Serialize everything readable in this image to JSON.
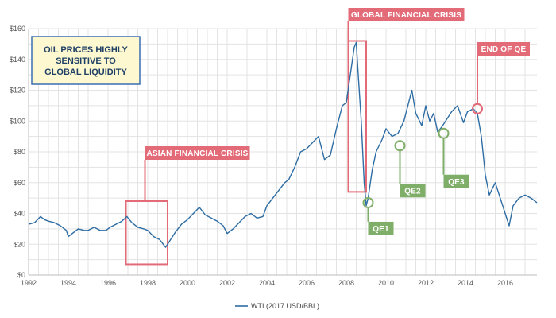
{
  "chart_data": {
    "type": "line",
    "title": "",
    "xlabel": "",
    "ylabel": "",
    "xlim": [
      1992,
      2017.6
    ],
    "ylim": [
      0,
      160
    ],
    "x_ticks": [
      1992,
      1994,
      1996,
      1998,
      2000,
      2002,
      2004,
      2006,
      2008,
      2010,
      2012,
      2014,
      2016
    ],
    "x_tick_labels": [
      "1992",
      "1994",
      "1996",
      "1998",
      "2000",
      "2002",
      "2004",
      "2006",
      "2008",
      "2010",
      "2012",
      "2014",
      "2016"
    ],
    "y_ticks": [
      0,
      20,
      40,
      60,
      80,
      100,
      120,
      140,
      160
    ],
    "y_tick_labels": [
      "$0",
      "$20",
      "$40",
      "$60",
      "$80",
      "$100",
      "$120",
      "$140",
      "$160"
    ],
    "grid": true,
    "legend_position": "bottom-center",
    "series": [
      {
        "name": "WTI (2017 USD/BBL)",
        "color": "#2e6da4",
        "x": [
          1992.0,
          1992.3,
          1992.6,
          1992.8,
          1993.0,
          1993.3,
          1993.6,
          1993.9,
          1994.0,
          1994.2,
          1994.5,
          1994.8,
          1995.0,
          1995.3,
          1995.6,
          1995.9,
          1996.1,
          1996.4,
          1996.7,
          1996.95,
          1997.2,
          1997.5,
          1997.8,
          1998.0,
          1998.3,
          1998.6,
          1998.9,
          1999.1,
          1999.4,
          1999.7,
          2000.0,
          2000.3,
          2000.6,
          2000.9,
          2001.2,
          2001.5,
          2001.8,
          2002.0,
          2002.3,
          2002.6,
          2002.9,
          2003.2,
          2003.5,
          2003.8,
          2004.0,
          2004.3,
          2004.6,
          2004.9,
          2005.1,
          2005.4,
          2005.7,
          2006.0,
          2006.3,
          2006.6,
          2006.9,
          2007.2,
          2007.5,
          2007.8,
          2008.0,
          2008.2,
          2008.4,
          2008.5,
          2008.6,
          2008.75,
          2008.9,
          2009.0,
          2009.1,
          2009.3,
          2009.5,
          2009.8,
          2010.0,
          2010.3,
          2010.6,
          2010.9,
          2011.1,
          2011.3,
          2011.5,
          2011.8,
          2012.0,
          2012.2,
          2012.4,
          2012.6,
          2012.8,
          2013.0,
          2013.3,
          2013.6,
          2013.9,
          2014.1,
          2014.4,
          2014.6,
          2014.8,
          2015.0,
          2015.2,
          2015.5,
          2015.8,
          2016.0,
          2016.2,
          2016.4,
          2016.7,
          2017.0,
          2017.3,
          2017.6
        ],
        "y": [
          33,
          34,
          38,
          36,
          35,
          34,
          32,
          29,
          25,
          27,
          30,
          29,
          29,
          31,
          29,
          29,
          31,
          33,
          35,
          38,
          34,
          31,
          30,
          29,
          25,
          23,
          18,
          22,
          28,
          33,
          36,
          40,
          44,
          39,
          37,
          35,
          32,
          27,
          30,
          34,
          38,
          40,
          37,
          38,
          45,
          50,
          55,
          60,
          62,
          70,
          80,
          82,
          86,
          90,
          75,
          78,
          95,
          110,
          112,
          130,
          148,
          151,
          130,
          100,
          60,
          45,
          50,
          68,
          80,
          88,
          95,
          90,
          92,
          100,
          110,
          120,
          105,
          97,
          110,
          100,
          105,
          93,
          96,
          100,
          106,
          110,
          99,
          106,
          108,
          105,
          90,
          65,
          52,
          60,
          48,
          40,
          32,
          45,
          50,
          52,
          50,
          47
        ]
      }
    ],
    "annotations": [
      {
        "label": "GLOBAL FINANCIAL CRISIS",
        "type": "box",
        "x": [
          2008.1,
          2009.0
        ],
        "y": [
          54,
          152
        ]
      },
      {
        "label": "ASIAN FINANCIAL CRISIS",
        "type": "box",
        "x": [
          1996.9,
          1999.0
        ],
        "y": [
          7,
          48
        ]
      },
      {
        "label": "END OF QE",
        "type": "circle",
        "x": 2014.6,
        "y": 108
      },
      {
        "label": "QE1",
        "type": "circle",
        "x": 2009.1,
        "y": 47
      },
      {
        "label": "QE2",
        "type": "circle",
        "x": 2010.7,
        "y": 84
      },
      {
        "label": "QE3",
        "type": "circle",
        "x": 2012.9,
        "y": 92
      }
    ],
    "note": "OIL PRICES HIGHLY SENSITIVE TO GLOBAL LIQUIDITY"
  },
  "colors": {
    "series": "#2e6da4",
    "callout_red": "#e36b78",
    "callout_green": "#7fae69",
    "note_border": "#3c6fb0",
    "note_fill": "#fdf8cf",
    "grid": "#e3e3e3"
  }
}
